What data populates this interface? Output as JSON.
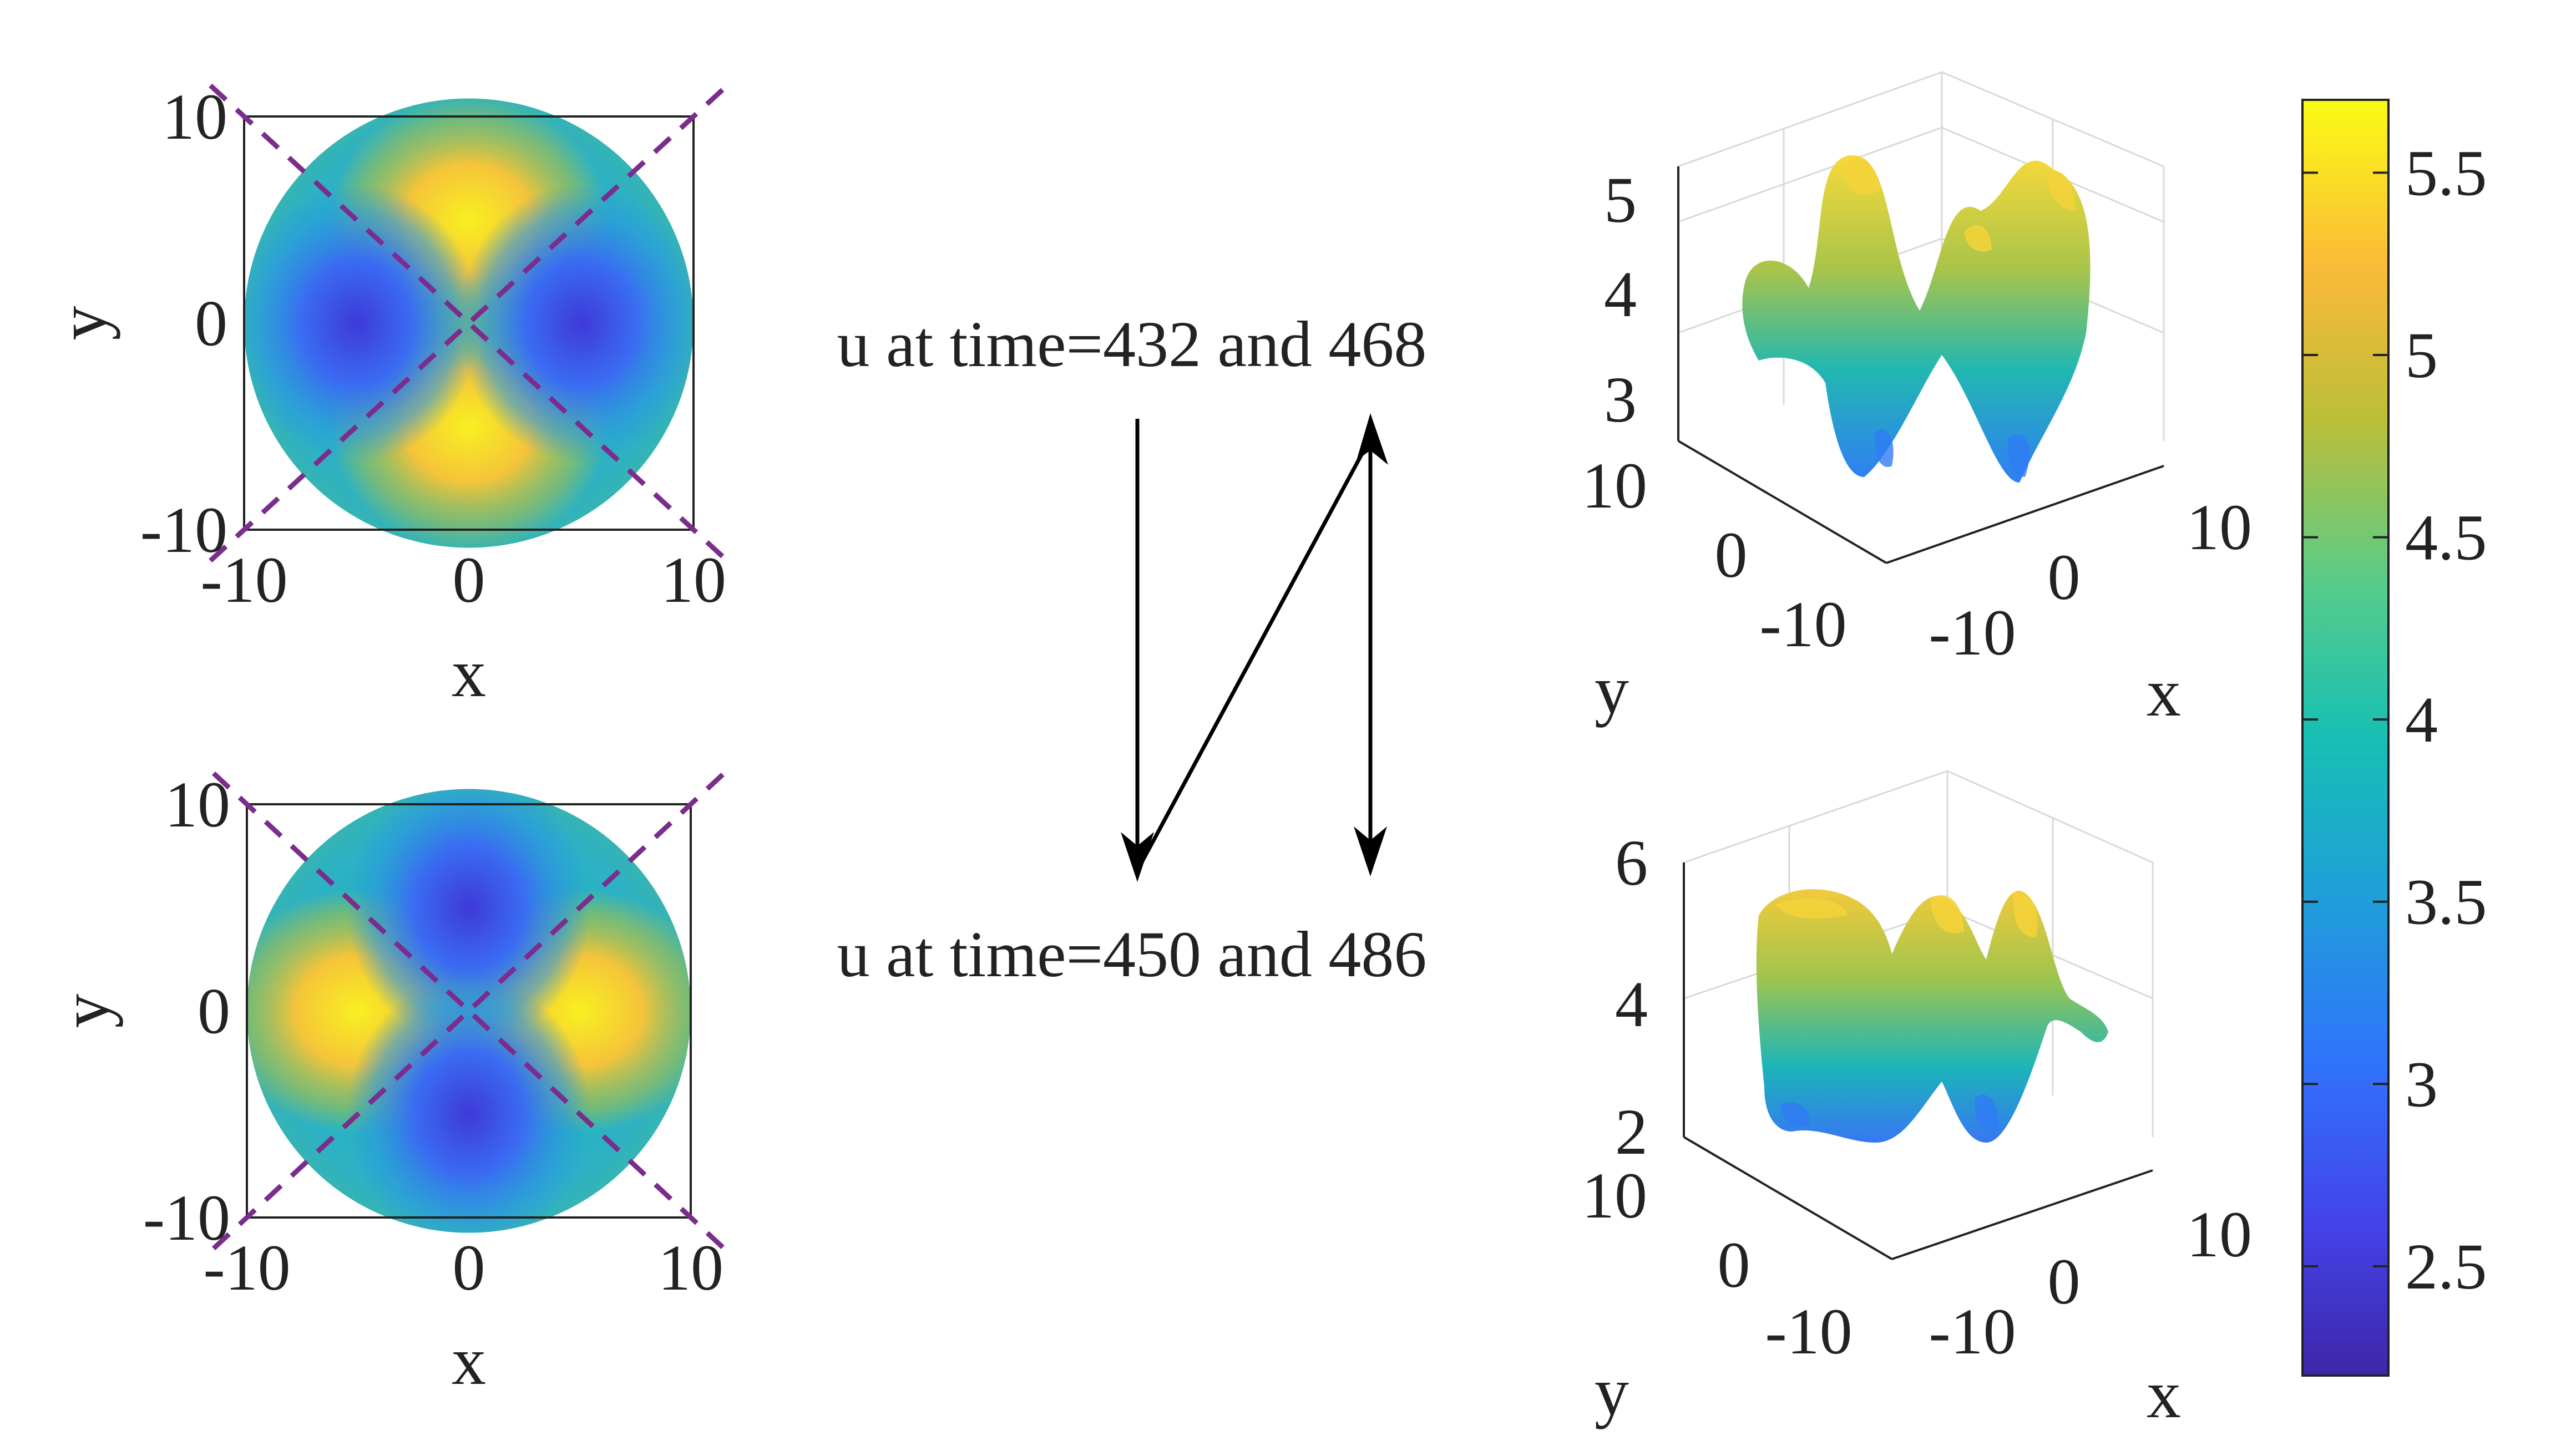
{
  "colors": {
    "diagonal": "#7b2d8e",
    "axis": "#222222",
    "arrow": "#000000",
    "grid3d": "#d9d9d9"
  },
  "annotations": {
    "top": "u at time=432 and 468",
    "bottom": "u at time=450 and 486"
  },
  "chart_data": [
    {
      "type": "heatmap",
      "panel": "top-left",
      "xlabel": "x",
      "ylabel": "y",
      "xlim": [
        -10,
        10
      ],
      "ylim": [
        -10,
        10
      ],
      "xticks": [
        "-10",
        "0",
        "10"
      ],
      "yticks": [
        "-10",
        "0",
        "10"
      ],
      "domain": "disk radius 10",
      "hot_spots": [
        [
          0,
          5
        ],
        [
          0,
          -5
        ]
      ],
      "cold_spots": [
        [
          -5,
          0
        ],
        [
          5,
          0
        ]
      ],
      "diagonals": "dashed lines y=x and y=-x"
    },
    {
      "type": "heatmap",
      "panel": "bottom-left",
      "xlabel": "x",
      "ylabel": "y",
      "xlim": [
        -10,
        10
      ],
      "ylim": [
        -10,
        10
      ],
      "xticks": [
        "-10",
        "0",
        "10"
      ],
      "yticks": [
        "-10",
        "0",
        "10"
      ],
      "domain": "disk radius 10",
      "hot_spots": [
        [
          -5,
          0
        ],
        [
          5,
          0
        ]
      ],
      "cold_spots": [
        [
          0,
          5
        ],
        [
          0,
          -5
        ]
      ],
      "diagonals": "dashed lines y=x and y=-x"
    },
    {
      "type": "surface",
      "panel": "top-right",
      "xlabel": "x",
      "ylabel": "y",
      "zlim": [
        2.7,
        5.4
      ],
      "zticks": [
        "3",
        "4",
        "5"
      ],
      "xticks": [
        "-10",
        "0",
        "10"
      ],
      "yticks": [
        "-10",
        "0",
        "10"
      ]
    },
    {
      "type": "surface",
      "panel": "bottom-right",
      "xlabel": "x",
      "ylabel": "y",
      "zlim": [
        2,
        6
      ],
      "zticks": [
        "2",
        "4",
        "6"
      ],
      "xticks": [
        "-10",
        "0",
        "10"
      ],
      "yticks": [
        "-10",
        "0",
        "10"
      ]
    },
    {
      "type": "colorbar",
      "colormap": "parula",
      "range": [
        2.2,
        5.7
      ],
      "ticks": [
        "2.5",
        "3",
        "3.5",
        "4",
        "4.5",
        "5",
        "5.5"
      ],
      "tick_values": [
        2.5,
        3,
        3.5,
        4,
        4.5,
        5,
        5.5
      ]
    }
  ]
}
